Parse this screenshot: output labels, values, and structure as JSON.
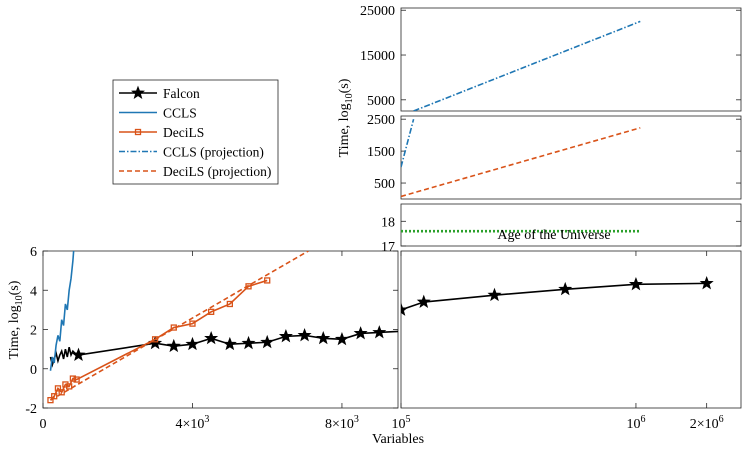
{
  "figure": {
    "xlabel": "Variables",
    "ylabel_left": "Time, log",
    "ylabel_left_sub": "10",
    "ylabel_left_tail": "(s)",
    "ylabel_right": "Time, log",
    "ylabel_right_sub": "10",
    "ylabel_right_tail": "(s)",
    "annotation": "Age of the Universe"
  },
  "colors": {
    "falcon": "#000000",
    "ccls": "#1f77b4",
    "decils": "#d95319",
    "universe": "#2ca02c",
    "axis": "#262626"
  },
  "legend": [
    {
      "name": "Falcon",
      "style": "star"
    },
    {
      "name": "CCLS",
      "style": "solid-blue"
    },
    {
      "name": "DeciLS",
      "style": "square-orange"
    },
    {
      "name": "CCLS (projection)",
      "style": "dashdot-blue"
    },
    {
      "name": "DeciLS (projection)",
      "style": "dashed-orange"
    }
  ],
  "chart_data": [
    {
      "id": "bottom-left",
      "type": "line",
      "xlim": [
        0,
        9500
      ],
      "ylim": [
        -2,
        6
      ],
      "xticks": [
        {
          "v": 0,
          "label": "0"
        },
        {
          "v": 4000,
          "label": "4×10³"
        },
        {
          "v": 8000,
          "label": "8×10³"
        }
      ],
      "yticks": [
        {
          "v": -2,
          "label": "-2"
        },
        {
          "v": 0,
          "label": "0"
        },
        {
          "v": 2,
          "label": "2"
        },
        {
          "v": 4,
          "label": "4"
        },
        {
          "v": 6,
          "label": "6"
        }
      ],
      "series": [
        {
          "name": "Falcon",
          "x": [
            200,
            250,
            300,
            350,
            400,
            450,
            500,
            550,
            600,
            650,
            700,
            750,
            800,
            850,
            900,
            950,
            3000,
            3500,
            4000,
            4500,
            5000,
            5500,
            6000,
            6500,
            7000,
            7500,
            8000,
            8500,
            9000,
            9500
          ],
          "y": [
            0.6,
            0.2,
            0.5,
            0.8,
            0.4,
            0.7,
            0.9,
            0.5,
            1.0,
            0.6,
            1.1,
            0.7,
            0.9,
            0.8,
            0.75,
            0.7,
            1.3,
            1.15,
            1.25,
            1.55,
            1.25,
            1.3,
            1.35,
            1.65,
            1.7,
            1.55,
            1.5,
            1.8,
            1.85,
            1.9
          ],
          "markers_x": [
            950,
            3000,
            3500,
            4000,
            4500,
            5000,
            5500,
            6000,
            6500,
            7000,
            7500,
            8000,
            8500,
            9000
          ],
          "markers_y": [
            0.7,
            1.3,
            1.15,
            1.25,
            1.55,
            1.25,
            1.3,
            1.35,
            1.65,
            1.7,
            1.55,
            1.5,
            1.8,
            1.85
          ]
        },
        {
          "name": "CCLS",
          "x": [
            200,
            250,
            300,
            350,
            400,
            450,
            500,
            550,
            600,
            650,
            700,
            750,
            800,
            820
          ],
          "y": [
            -0.1,
            0.6,
            0.3,
            1.2,
            1.7,
            1.4,
            2.5,
            2.2,
            3.3,
            3.0,
            4.0,
            4.6,
            5.5,
            6.0
          ]
        },
        {
          "name": "DeciLS",
          "x": [
            200,
            300,
            400,
            500,
            600,
            700,
            800,
            900,
            3000,
            3500,
            4000,
            4500,
            5000,
            5500,
            6000
          ],
          "y": [
            -1.6,
            -1.4,
            -1.0,
            -1.2,
            -0.8,
            -0.9,
            -0.5,
            -0.55,
            1.5,
            2.1,
            2.3,
            2.9,
            3.3,
            4.2,
            4.5
          ],
          "markers_x": [
            200,
            300,
            400,
            500,
            600,
            700,
            800,
            900,
            3000,
            3500,
            4000,
            4500,
            5000,
            5500,
            6000
          ],
          "markers_y": [
            -1.6,
            -1.4,
            -1.0,
            -1.2,
            -0.8,
            -0.9,
            -0.5,
            -0.55,
            1.5,
            2.1,
            2.3,
            2.9,
            3.3,
            4.2,
            4.5
          ]
        },
        {
          "name": "DeciLS (projection)",
          "x": [
            200,
            7100
          ],
          "y": [
            -1.6,
            6.0
          ]
        }
      ]
    },
    {
      "id": "bottom-right",
      "type": "line",
      "scale": "log-x",
      "xlim": [
        100000,
        2800000
      ],
      "ylim": [
        -2,
        6
      ],
      "xticks": [
        {
          "v": 100000,
          "label": "10⁵"
        },
        {
          "v": 1000000,
          "label": "10⁶"
        },
        {
          "v": 2000000,
          "label": "2×10⁶"
        }
      ],
      "series": [
        {
          "name": "Falcon",
          "x": [
            100000,
            125000,
            250000,
            500000,
            1000000,
            2000000
          ],
          "y": [
            3.0,
            3.4,
            3.75,
            4.05,
            4.3,
            4.35
          ]
        }
      ]
    },
    {
      "id": "top-break",
      "type": "line",
      "xlim": [
        100000,
        2800000
      ],
      "ylim": [
        17,
        18.7
      ],
      "yticks": [
        {
          "v": 17,
          "label": "17"
        },
        {
          "v": 18,
          "label": "18"
        }
      ],
      "series": [
        {
          "name": "Age of the Universe",
          "x": [
            100000,
            2000000
          ],
          "y": [
            17.6,
            17.6
          ]
        }
      ]
    },
    {
      "id": "mid-break",
      "type": "line",
      "xlim": [
        100000,
        2800000
      ],
      "ylim": [
        0,
        2600
      ],
      "yticks": [
        {
          "v": 500,
          "label": "500"
        },
        {
          "v": 1500,
          "label": "1500"
        },
        {
          "v": 2500,
          "label": "2500"
        }
      ],
      "series": [
        {
          "name": "CCLS (projection)",
          "x": [
            100000,
            200000
          ],
          "y": [
            1000,
            2500
          ]
        },
        {
          "name": "DeciLS (projection)",
          "x": [
            100000,
            2000000
          ],
          "y": [
            80,
            2230
          ]
        }
      ]
    },
    {
      "id": "top",
      "type": "line",
      "xlim": [
        100000,
        2800000
      ],
      "ylim": [
        2500,
        25500
      ],
      "yticks": [
        {
          "v": 5000,
          "label": "5000"
        },
        {
          "v": 15000,
          "label": "15000"
        },
        {
          "v": 25000,
          "label": "25000"
        }
      ],
      "series": [
        {
          "name": "CCLS (projection)",
          "x": [
            200000,
            2000000
          ],
          "y": [
            2500,
            22500
          ]
        }
      ]
    }
  ]
}
